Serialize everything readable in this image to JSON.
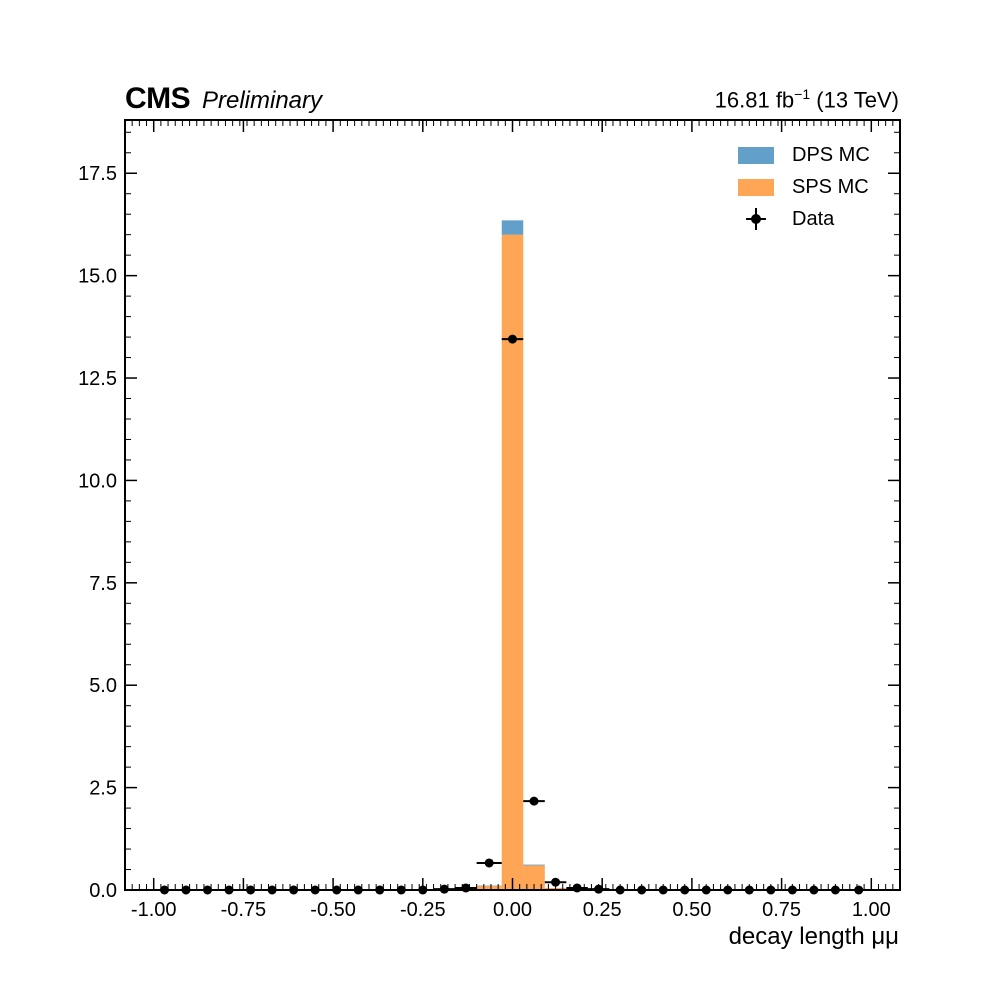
{
  "header": {
    "experiment": "CMS",
    "status": "Preliminary",
    "luminosity": "16.81 fb",
    "lumi_exponent": "−1",
    "energy": " (13 TeV)"
  },
  "chart_data": {
    "type": "bar",
    "xlabel": "decay length μμ",
    "ylabel": "",
    "xlim": [
      -1.08,
      1.08
    ],
    "ylim": [
      0,
      18.8
    ],
    "xticks": [
      -1.0,
      -0.75,
      -0.5,
      -0.25,
      0.0,
      0.25,
      0.5,
      0.75,
      1.0
    ],
    "xtick_labels": [
      "-1.00",
      "-0.75",
      "-0.50",
      "-0.25",
      "0.00",
      "0.25",
      "0.50",
      "0.75",
      "1.00"
    ],
    "yticks": [
      0.0,
      2.5,
      5.0,
      7.5,
      10.0,
      12.5,
      15.0,
      17.5
    ],
    "ytick_labels": [
      "0.0",
      "2.5",
      "5.0",
      "7.5",
      "10.0",
      "12.5",
      "15.0",
      "17.5"
    ],
    "legend_position": "top-right",
    "bin_edges": [
      -1.0,
      -0.94,
      -0.88,
      -0.82,
      -0.76,
      -0.7,
      -0.64,
      -0.58,
      -0.52,
      -0.46,
      -0.4,
      -0.34,
      -0.28,
      -0.22,
      -0.16,
      -0.1,
      -0.03,
      0.03,
      0.09,
      0.15,
      0.21,
      0.27,
      0.33,
      0.39,
      0.45,
      0.51,
      0.57,
      0.63,
      0.69,
      0.75,
      0.81,
      0.87,
      0.93,
      1.0
    ],
    "series": [
      {
        "name": "SPS MC",
        "kind": "stack",
        "color": "#ff7f0e",
        "values": [
          0,
          0,
          0,
          0,
          0,
          0,
          0,
          0,
          0,
          0,
          0,
          0,
          0,
          0.01,
          0.02,
          0.1,
          16.0,
          0.6,
          0.05,
          0.02,
          0.01,
          0,
          0,
          0,
          0,
          0,
          0,
          0,
          0,
          0,
          0,
          0,
          0
        ]
      },
      {
        "name": "DPS MC",
        "kind": "stack",
        "color": "#1f77b4",
        "values": [
          0,
          0,
          0,
          0,
          0,
          0,
          0,
          0,
          0,
          0,
          0,
          0,
          0,
          0,
          0,
          0.01,
          0.35,
          0.02,
          0,
          0,
          0,
          0,
          0,
          0,
          0,
          0,
          0,
          0,
          0,
          0,
          0,
          0,
          0
        ]
      },
      {
        "name": "Data",
        "kind": "points",
        "color": "#000000",
        "x": [
          -0.97,
          -0.91,
          -0.85,
          -0.79,
          -0.73,
          -0.67,
          -0.61,
          -0.55,
          -0.49,
          -0.43,
          -0.37,
          -0.31,
          -0.25,
          -0.19,
          -0.13,
          -0.065,
          0.0,
          0.06,
          0.12,
          0.18,
          0.24,
          0.3,
          0.36,
          0.42,
          0.48,
          0.54,
          0.6,
          0.66,
          0.72,
          0.78,
          0.84,
          0.9,
          0.965
        ],
        "xerr": [
          0.03,
          0.03,
          0.03,
          0.03,
          0.03,
          0.03,
          0.03,
          0.03,
          0.03,
          0.03,
          0.03,
          0.03,
          0.03,
          0.03,
          0.03,
          0.035,
          0.03,
          0.03,
          0.03,
          0.03,
          0.03,
          0.03,
          0.03,
          0.03,
          0.03,
          0.03,
          0.03,
          0.03,
          0.03,
          0.03,
          0.03,
          0.03,
          0.035
        ],
        "y": [
          0.0,
          0.0,
          0.0,
          0.0,
          0.0,
          0.0,
          0.0,
          0.0,
          0.0,
          0.0,
          0.0,
          0.0,
          0.0,
          0.02,
          0.05,
          0.66,
          13.45,
          2.17,
          0.19,
          0.05,
          0.02,
          0.0,
          0.0,
          0.0,
          0.0,
          0.0,
          0.0,
          0.0,
          0.0,
          0.0,
          0.0,
          0.0,
          0.0
        ]
      }
    ]
  }
}
